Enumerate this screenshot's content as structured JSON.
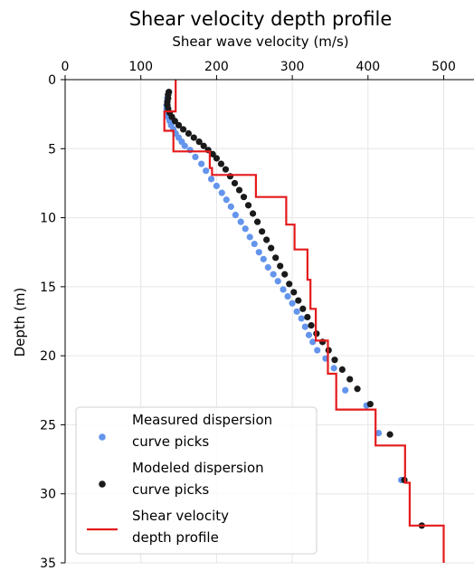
{
  "chart_data": {
    "type": "scatter",
    "title": "Shear velocity depth profile",
    "xlabel": "Shear wave velocity (m/s)",
    "ylabel": "Depth (m)",
    "xlim": [
      0,
      540
    ],
    "ylim": [
      0,
      35
    ],
    "y_inverted": true,
    "x_axis_position": "top",
    "x_ticks": [
      "0",
      "100",
      "200",
      "300",
      "400",
      "500"
    ],
    "y_ticks": [
      "0",
      "5",
      "10",
      "15",
      "20",
      "25",
      "30",
      "35"
    ],
    "grid": true,
    "legend_position": "bottom-left",
    "series": [
      {
        "name": "Measured dispersion curve picks",
        "kind": "scatter",
        "color": "#6495ed",
        "x": [
          137,
          136,
          135,
          135,
          134,
          134,
          135,
          136,
          138,
          140,
          143,
          146,
          150,
          154,
          158,
          165,
          172,
          180,
          186,
          193,
          200,
          207,
          213,
          219,
          225,
          232,
          238,
          244,
          250,
          256,
          262,
          268,
          275,
          281,
          288,
          294,
          300,
          306,
          312,
          317,
          322,
          327,
          333,
          344,
          355,
          370,
          398,
          414,
          444
        ],
        "y": [
          0.9,
          1.1,
          1.35,
          1.6,
          1.85,
          2.1,
          2.4,
          2.7,
          3.0,
          3.3,
          3.6,
          3.9,
          4.2,
          4.5,
          4.8,
          5.1,
          5.6,
          6.1,
          6.6,
          7.2,
          7.7,
          8.2,
          8.7,
          9.2,
          9.8,
          10.3,
          10.8,
          11.4,
          11.9,
          12.5,
          13.0,
          13.6,
          14.1,
          14.6,
          15.2,
          15.7,
          16.2,
          16.8,
          17.3,
          17.9,
          18.5,
          19.0,
          19.6,
          20.2,
          20.9,
          22.5,
          23.6,
          25.6,
          29.0
        ]
      },
      {
        "name": "Modeled dispersion curve picks",
        "kind": "scatter",
        "color": "#1a1a1a",
        "x": [
          137,
          136,
          136,
          135,
          135,
          136,
          138,
          141,
          145,
          150,
          156,
          163,
          170,
          177,
          183,
          189,
          195,
          200,
          206,
          212,
          218,
          224,
          230,
          236,
          242,
          248,
          254,
          260,
          266,
          272,
          278,
          284,
          290,
          296,
          302,
          308,
          314,
          320,
          325,
          332,
          340,
          348,
          356,
          366,
          376,
          386,
          403,
          429,
          448,
          471
        ],
        "y": [
          0.9,
          1.1,
          1.35,
          1.6,
          1.85,
          2.1,
          2.4,
          2.7,
          3.0,
          3.3,
          3.6,
          3.9,
          4.2,
          4.5,
          4.8,
          5.1,
          5.4,
          5.7,
          6.1,
          6.5,
          7.0,
          7.5,
          8.0,
          8.5,
          9.1,
          9.7,
          10.3,
          11.0,
          11.6,
          12.2,
          12.9,
          13.5,
          14.1,
          14.8,
          15.4,
          16.0,
          16.6,
          17.2,
          17.8,
          18.4,
          19.0,
          19.6,
          20.3,
          21.0,
          21.7,
          22.4,
          23.5,
          25.7,
          29.0,
          32.3
        ]
      },
      {
        "name": "Shear velocity depth profile",
        "kind": "step",
        "color": "#e41a1c",
        "x": [
          146,
          146,
          131,
          131,
          143,
          143,
          191,
          191,
          194,
          194,
          252,
          252,
          292,
          292,
          303,
          303,
          320,
          320,
          324,
          324,
          331,
          331,
          347,
          347,
          358,
          358,
          410,
          410,
          449,
          449,
          455,
          455,
          500,
          500
        ],
        "y": [
          0,
          2.3,
          2.3,
          3.7,
          3.7,
          5.2,
          5.2,
          6.4,
          6.4,
          6.9,
          6.9,
          8.5,
          8.5,
          10.5,
          10.5,
          12.3,
          12.3,
          14.5,
          14.5,
          16.6,
          16.6,
          18.9,
          18.9,
          21.3,
          21.3,
          23.9,
          23.9,
          26.5,
          26.5,
          29.2,
          29.2,
          32.3,
          32.3,
          35
        ]
      }
    ]
  }
}
